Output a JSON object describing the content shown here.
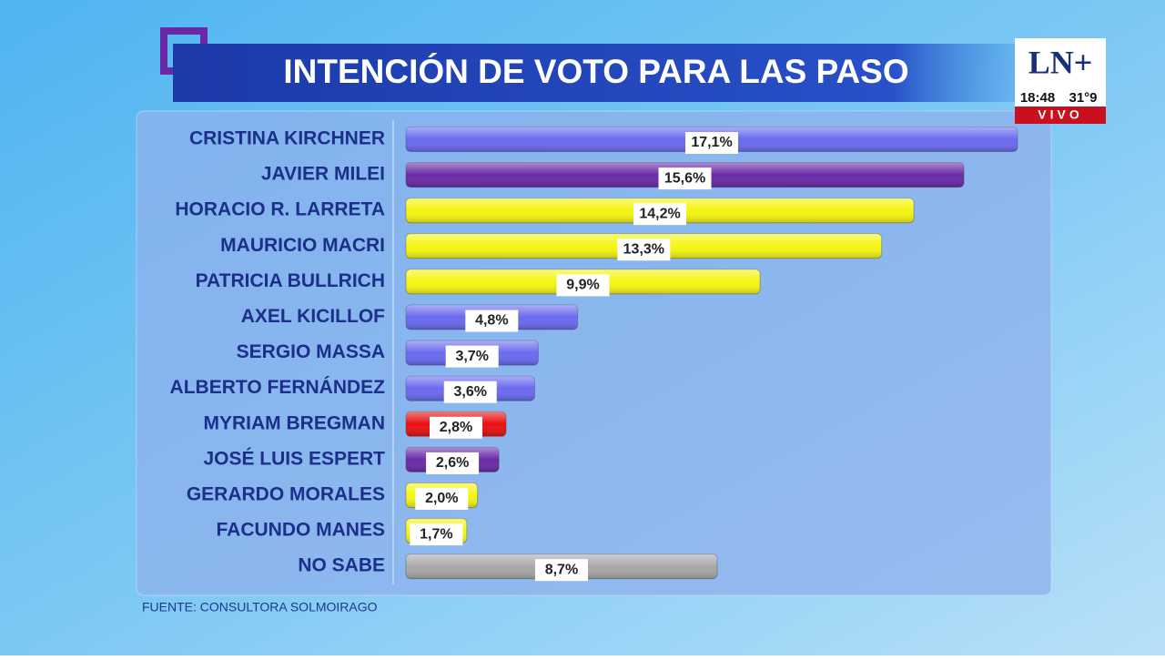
{
  "chart_data": {
    "type": "bar",
    "orientation": "horizontal",
    "title": "INTENCIÓN DE VOTO PARA LAS PASO",
    "categories": [
      "CRISTINA KIRCHNER",
      "JAVIER MILEI",
      "HORACIO R. LARRETA",
      "MAURICIO MACRI",
      "PATRICIA BULLRICH",
      "AXEL KICILLOF",
      "SERGIO MASSA",
      "ALBERTO FERNÁNDEZ",
      "MYRIAM BREGMAN",
      "JOSÉ LUIS ESPERT",
      "GERARDO MORALES",
      "FACUNDO MANES",
      "NO SABE"
    ],
    "values": [
      17.1,
      15.6,
      14.2,
      13.3,
      9.9,
      4.8,
      3.7,
      3.6,
      2.8,
      2.6,
      2.0,
      1.7,
      8.7
    ],
    "value_labels": [
      "17,1%",
      "15,6%",
      "14,2%",
      "13,3%",
      "9,9%",
      "4,8%",
      "3,7%",
      "3,6%",
      "2,8%",
      "2,6%",
      "2,0%",
      "1,7%",
      "8,7%"
    ],
    "colors": [
      "#6a6af0",
      "#6a2aa8",
      "#f5f512",
      "#f5f512",
      "#f5f512",
      "#6a6af0",
      "#6a6af0",
      "#6a6af0",
      "#e81010",
      "#6a2aa8",
      "#f5f512",
      "#f5f512",
      "#a8a8a8"
    ],
    "source": "FUENTE: CONSULTORA SOLMOIRAGO"
  },
  "overlay": {
    "logo": "LN+",
    "time": "18:48",
    "temperature": "31°9",
    "live": "VIVO"
  }
}
